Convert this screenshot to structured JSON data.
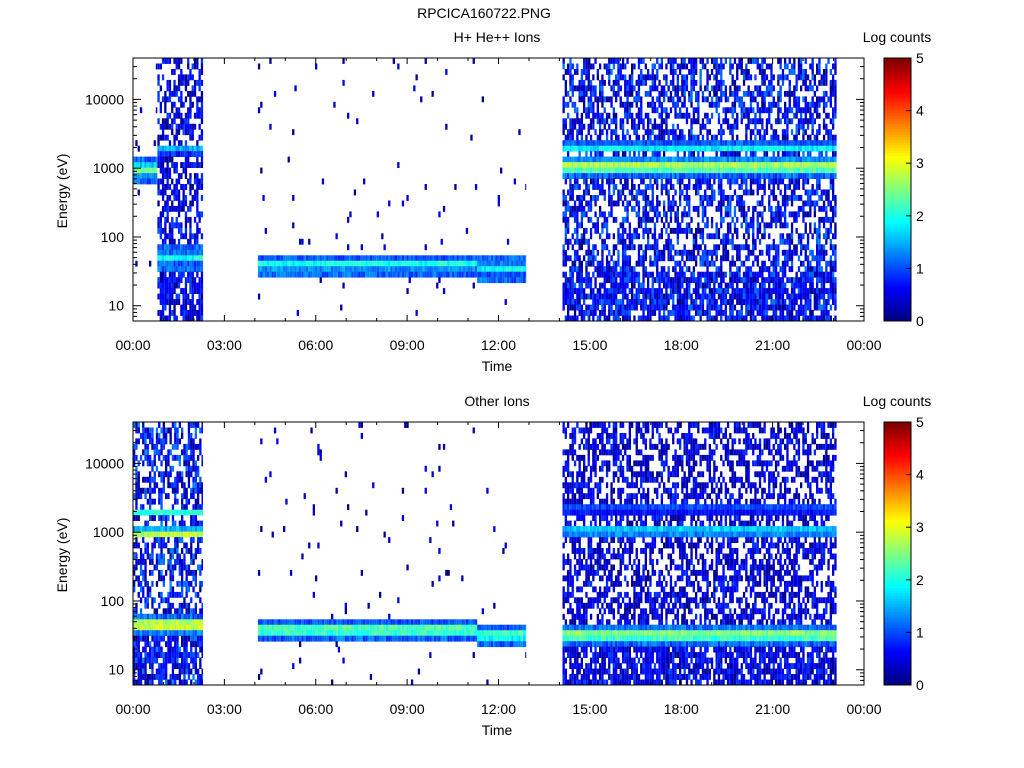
{
  "figure": {
    "title": "RPCICA160722.PNG"
  },
  "chart_data": [
    {
      "type": "heatmap",
      "title": "H+ He++ Ions",
      "xlabel": "Time",
      "ylabel": "Energy (eV)",
      "x_unit": "hours",
      "xlim": [
        0,
        24
      ],
      "x_ticks": [
        "00:00",
        "03:00",
        "06:00",
        "09:00",
        "12:00",
        "15:00",
        "18:00",
        "21:00",
        "00:00"
      ],
      "y_scale": "log",
      "ylim": [
        6,
        40000
      ],
      "y_ticks": [
        "10",
        "100",
        "1000",
        "10000"
      ],
      "colorbar": {
        "label": "Log counts",
        "range": [
          0,
          5
        ],
        "ticks": [
          "0",
          "1",
          "2",
          "3",
          "4",
          "5"
        ]
      },
      "segments": [
        {
          "t_start": 0.0,
          "t_end": 0.8,
          "band_center_eV": 950,
          "band_peak_log": 2.6,
          "background_log": 0.0,
          "low_energy_stripes": false
        },
        {
          "t_start": 0.8,
          "t_end": 2.3,
          "band_center_eV": 50,
          "band_peak_log": 2.0,
          "second_band_eV": 1900,
          "second_band_log": 1.6,
          "background_log": 0.6,
          "low_energy_stripes": true
        },
        {
          "t_start": 4.1,
          "t_end": 11.3,
          "band_center_eV": 40,
          "band_peak_log": 2.1,
          "background_log": 0.0,
          "low_energy_stripes": false
        },
        {
          "t_start": 11.3,
          "t_end": 12.9,
          "band_center_eV": 35,
          "band_peak_log": 2.0,
          "background_log": 0.0,
          "low_energy_stripes": false
        },
        {
          "t_start": 14.1,
          "t_end": 23.1,
          "band_center_eV": 1050,
          "band_peak_log": 3.2,
          "second_band_eV": 2000,
          "second_band_log": 2.0,
          "background_log": 0.8,
          "low_energy_stripes": true
        }
      ]
    },
    {
      "type": "heatmap",
      "title": "Other Ions",
      "xlabel": "Time",
      "ylabel": "Energy (eV)",
      "x_unit": "hours",
      "xlim": [
        0,
        24
      ],
      "x_ticks": [
        "00:00",
        "03:00",
        "06:00",
        "09:00",
        "12:00",
        "15:00",
        "18:00",
        "21:00",
        "00:00"
      ],
      "y_scale": "log",
      "ylim": [
        6,
        40000
      ],
      "y_ticks": [
        "10",
        "100",
        "1000",
        "10000"
      ],
      "colorbar": {
        "label": "Log counts",
        "range": [
          0,
          5
        ],
        "ticks": [
          "0",
          "1",
          "2",
          "3",
          "4",
          "5"
        ]
      },
      "segments": [
        {
          "t_start": 0.0,
          "t_end": 2.3,
          "band_center_eV": 45,
          "band_peak_log": 3.6,
          "second_band_eV": 950,
          "second_band_log": 3.0,
          "third_band_eV": 1900,
          "third_band_log": 2.2,
          "background_log": 0.9,
          "low_energy_stripes": true
        },
        {
          "t_start": 4.1,
          "t_end": 11.3,
          "band_center_eV": 38,
          "band_peak_log": 2.8,
          "background_log": 0.0,
          "low_energy_stripes": false
        },
        {
          "t_start": 11.3,
          "t_end": 12.9,
          "band_center_eV": 32,
          "band_peak_log": 2.6,
          "background_log": 0.0,
          "low_energy_stripes": false
        },
        {
          "t_start": 14.1,
          "t_end": 23.1,
          "band_center_eV": 32,
          "band_peak_log": 3.0,
          "second_band_eV": 1050,
          "second_band_log": 2.0,
          "third_band_eV": 2200,
          "third_band_log": 1.2,
          "background_log": 0.5,
          "low_energy_stripes": true
        }
      ]
    }
  ]
}
